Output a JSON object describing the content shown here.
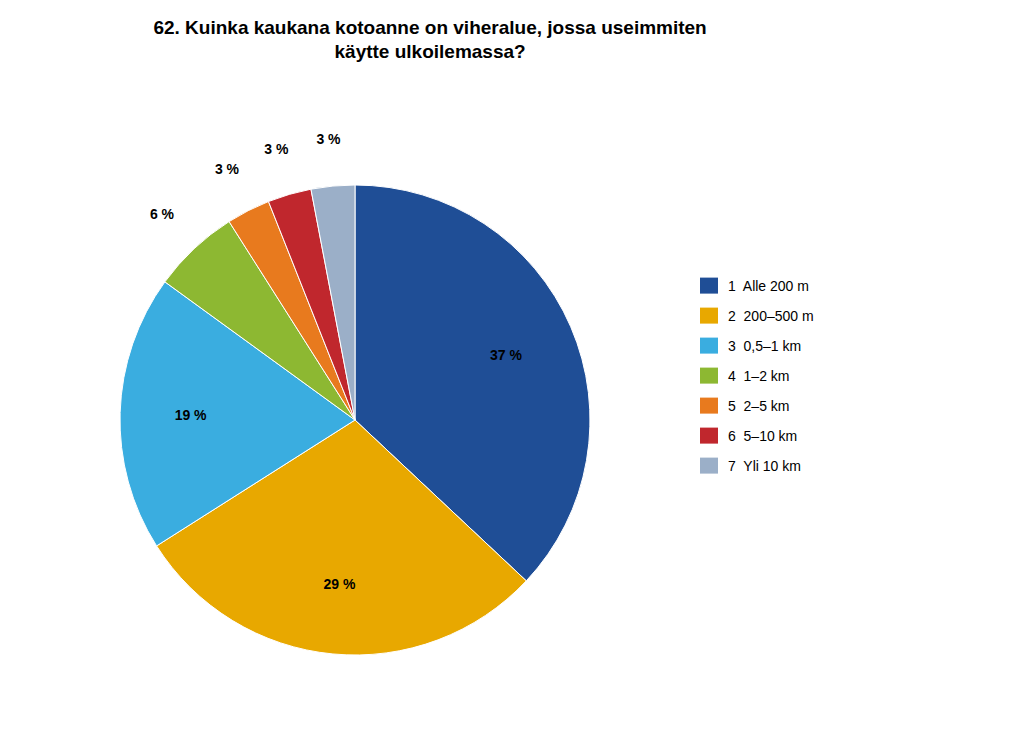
{
  "chart_data": {
    "type": "pie",
    "title": "62. Kuinka kaukana kotoanne on viheralue, jossa useimmiten\nkäytte ulkoilemassa?",
    "categories": [
      "1  Alle 200 m",
      "2  200–500 m",
      "3  0,5–1 km",
      "4  1–2 km",
      "5  2–5 km",
      "6  5–10 km",
      "7  Yli 10 km"
    ],
    "values": [
      37,
      29,
      19,
      6,
      3,
      3,
      3
    ],
    "value_labels": [
      "37 %",
      "29 %",
      "19 %",
      "6 %",
      "3 %",
      "3 %",
      "3 %"
    ],
    "colors": [
      "#1F4E96",
      "#E8A800",
      "#3AADE0",
      "#8DB832",
      "#E87A1E",
      "#C0272D",
      "#9BAFC8"
    ],
    "data_labels": true,
    "legend": "right"
  }
}
